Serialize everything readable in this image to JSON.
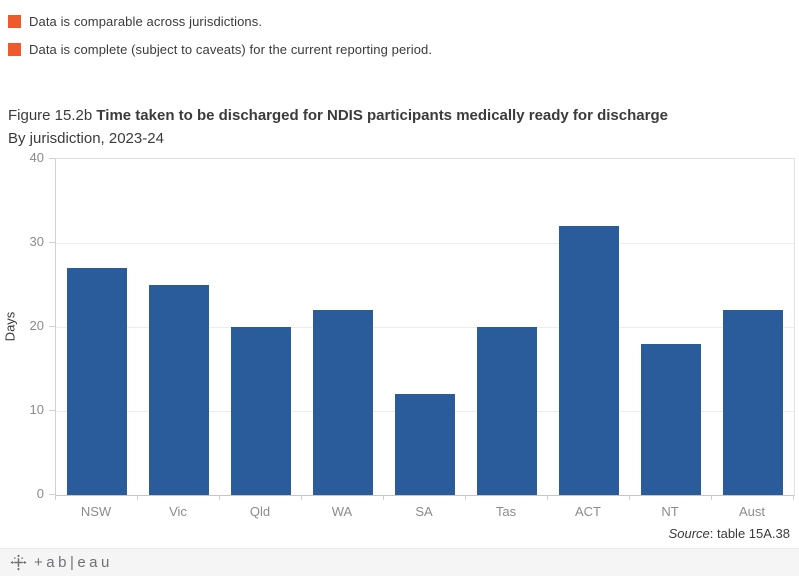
{
  "legend": {
    "items": [
      {
        "label": "Data is comparable across jurisdictions.",
        "color": "#f0592c"
      },
      {
        "label": "Data is complete (subject to caveats) for the current reporting period.",
        "color": "#f0592c"
      }
    ]
  },
  "title": {
    "figure_label": "Figure 15.2b ",
    "main": "Time taken to be discharged for NDIS participants medically ready for discharge",
    "subtitle": "By jurisdiction, 2023-24"
  },
  "chart_data": {
    "type": "bar",
    "categories": [
      "NSW",
      "Vic",
      "Qld",
      "WA",
      "SA",
      "Tas",
      "ACT",
      "NT",
      "Aust"
    ],
    "values": [
      27,
      25,
      20,
      22,
      12,
      20,
      32,
      18,
      22
    ],
    "title": "Time taken to be discharged for NDIS participants medically ready for discharge, by jurisdiction, 2023-24",
    "xlabel": "",
    "ylabel": "Days",
    "ylim": [
      0,
      40
    ],
    "yticks": [
      0,
      10,
      20,
      30,
      40
    ],
    "bar_color": "#2a5c9b",
    "grid": true,
    "legend_position": "none"
  },
  "source": {
    "prefix": "Source",
    "text": ": table 15A.38"
  },
  "footer": {
    "logo_text": "+ab|eau"
  }
}
